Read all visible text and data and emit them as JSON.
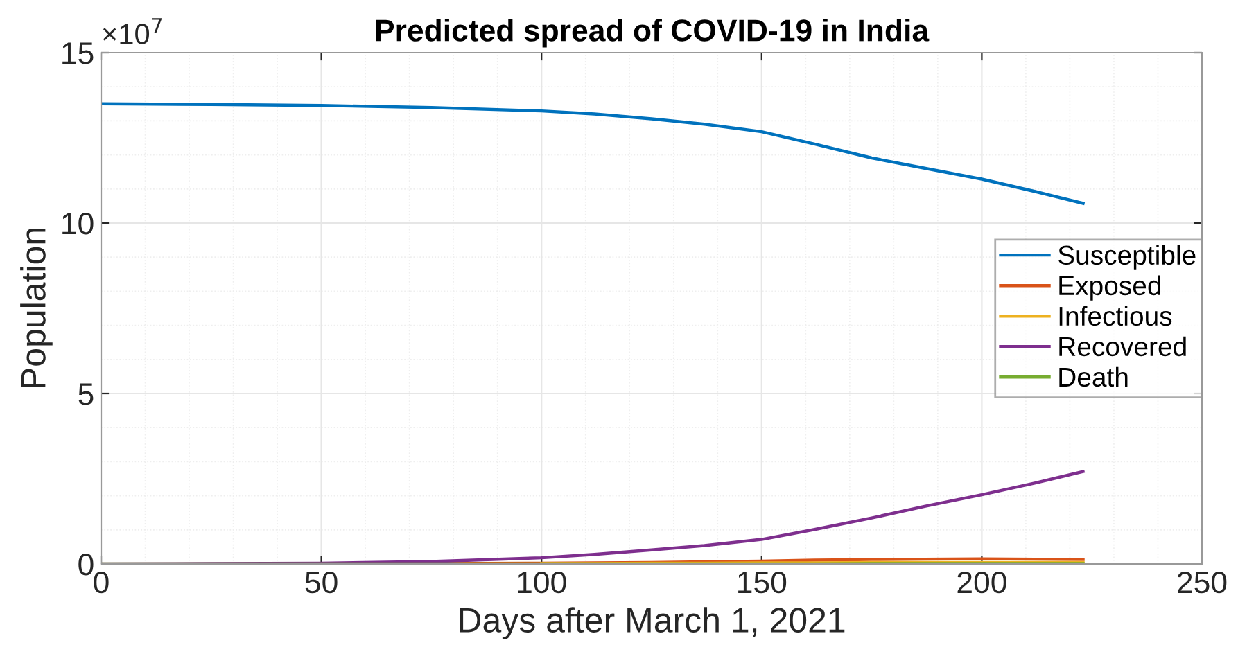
{
  "chart_data": {
    "type": "line",
    "title": "Predicted spread of COVID-19 in India",
    "xlabel": "Days after March 1, 2021",
    "ylabel": "Population",
    "annotations": [
      "×10$^{7}$"
    ],
    "x": [
      0,
      25,
      50,
      75,
      100,
      112,
      125,
      137,
      150,
      162,
      175,
      187,
      200,
      212,
      223
    ],
    "series": [
      {
        "name": "Susceptible",
        "color": "#0072bd",
        "values": [
          13.5,
          13.48,
          13.45,
          13.39,
          13.29,
          13.2,
          13.06,
          12.9,
          12.68,
          12.32,
          11.91,
          11.61,
          11.29,
          10.93,
          10.58
        ]
      },
      {
        "name": "Exposed",
        "color": "#d95319",
        "values": [
          null,
          null,
          null,
          0.01,
          0.02,
          0.03,
          0.04,
          0.06,
          0.08,
          0.11,
          0.13,
          0.14,
          0.15,
          0.14,
          0.13
        ]
      },
      {
        "name": "Infectious",
        "color": "#edb120",
        "values": [
          null,
          null,
          null,
          null,
          0.01,
          0.01,
          0.02,
          0.02,
          0.03,
          0.03,
          0.04,
          0.04,
          0.04,
          0.04,
          0.04
        ]
      },
      {
        "name": "Recovered",
        "color": "#7e2f8e",
        "values": [
          0,
          0.01,
          0.02,
          0.07,
          0.18,
          0.28,
          0.41,
          0.54,
          0.72,
          1.01,
          1.35,
          1.69,
          2.03,
          2.37,
          2.71
        ]
      },
      {
        "name": "Death",
        "color": "#77ac30",
        "values": [
          0,
          0,
          0,
          0,
          0,
          0,
          0,
          0,
          0,
          0,
          0.01,
          0.01,
          0.01,
          0.01,
          0.01
        ]
      }
    ],
    "xlim": [
      0,
      250
    ],
    "xticks": [
      0,
      50,
      100,
      150,
      200,
      250
    ],
    "ylim": [
      0,
      15
    ],
    "yticks": [
      0,
      5,
      10,
      15
    ],
    "grid": true,
    "legend": "right",
    "line_style": "solid",
    "marker": "none"
  }
}
